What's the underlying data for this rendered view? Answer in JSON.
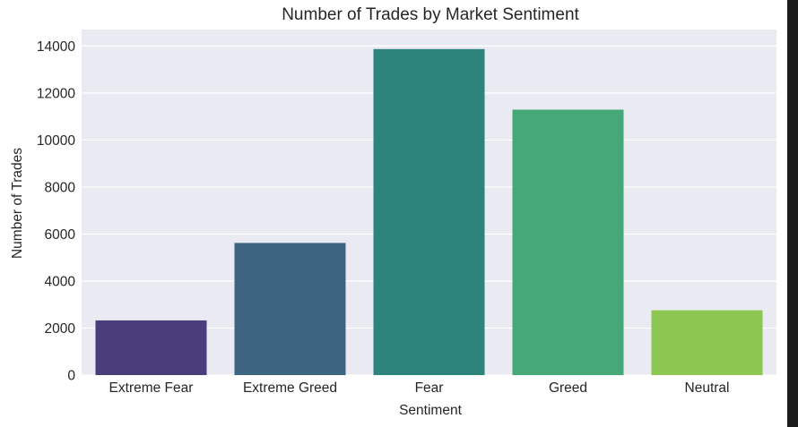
{
  "chart_data": {
    "type": "bar",
    "title": "Number of Trades by Market Sentiment",
    "xlabel": "Sentiment",
    "ylabel": "Number of Trades",
    "categories": [
      "Extreme Fear",
      "Extreme Greed",
      "Fear",
      "Greed",
      "Neutral"
    ],
    "values": [
      2326,
      5621,
      13869,
      11292,
      2756
    ],
    "colors": [
      "#4a3d7c",
      "#3d6582",
      "#2c847c",
      "#47a877",
      "#8cc752"
    ],
    "ylim": [
      0,
      14700
    ],
    "yticks": [
      0,
      2000,
      4000,
      6000,
      8000,
      10000,
      12000,
      14000
    ],
    "grid": true,
    "background": "#eaeaf2"
  }
}
